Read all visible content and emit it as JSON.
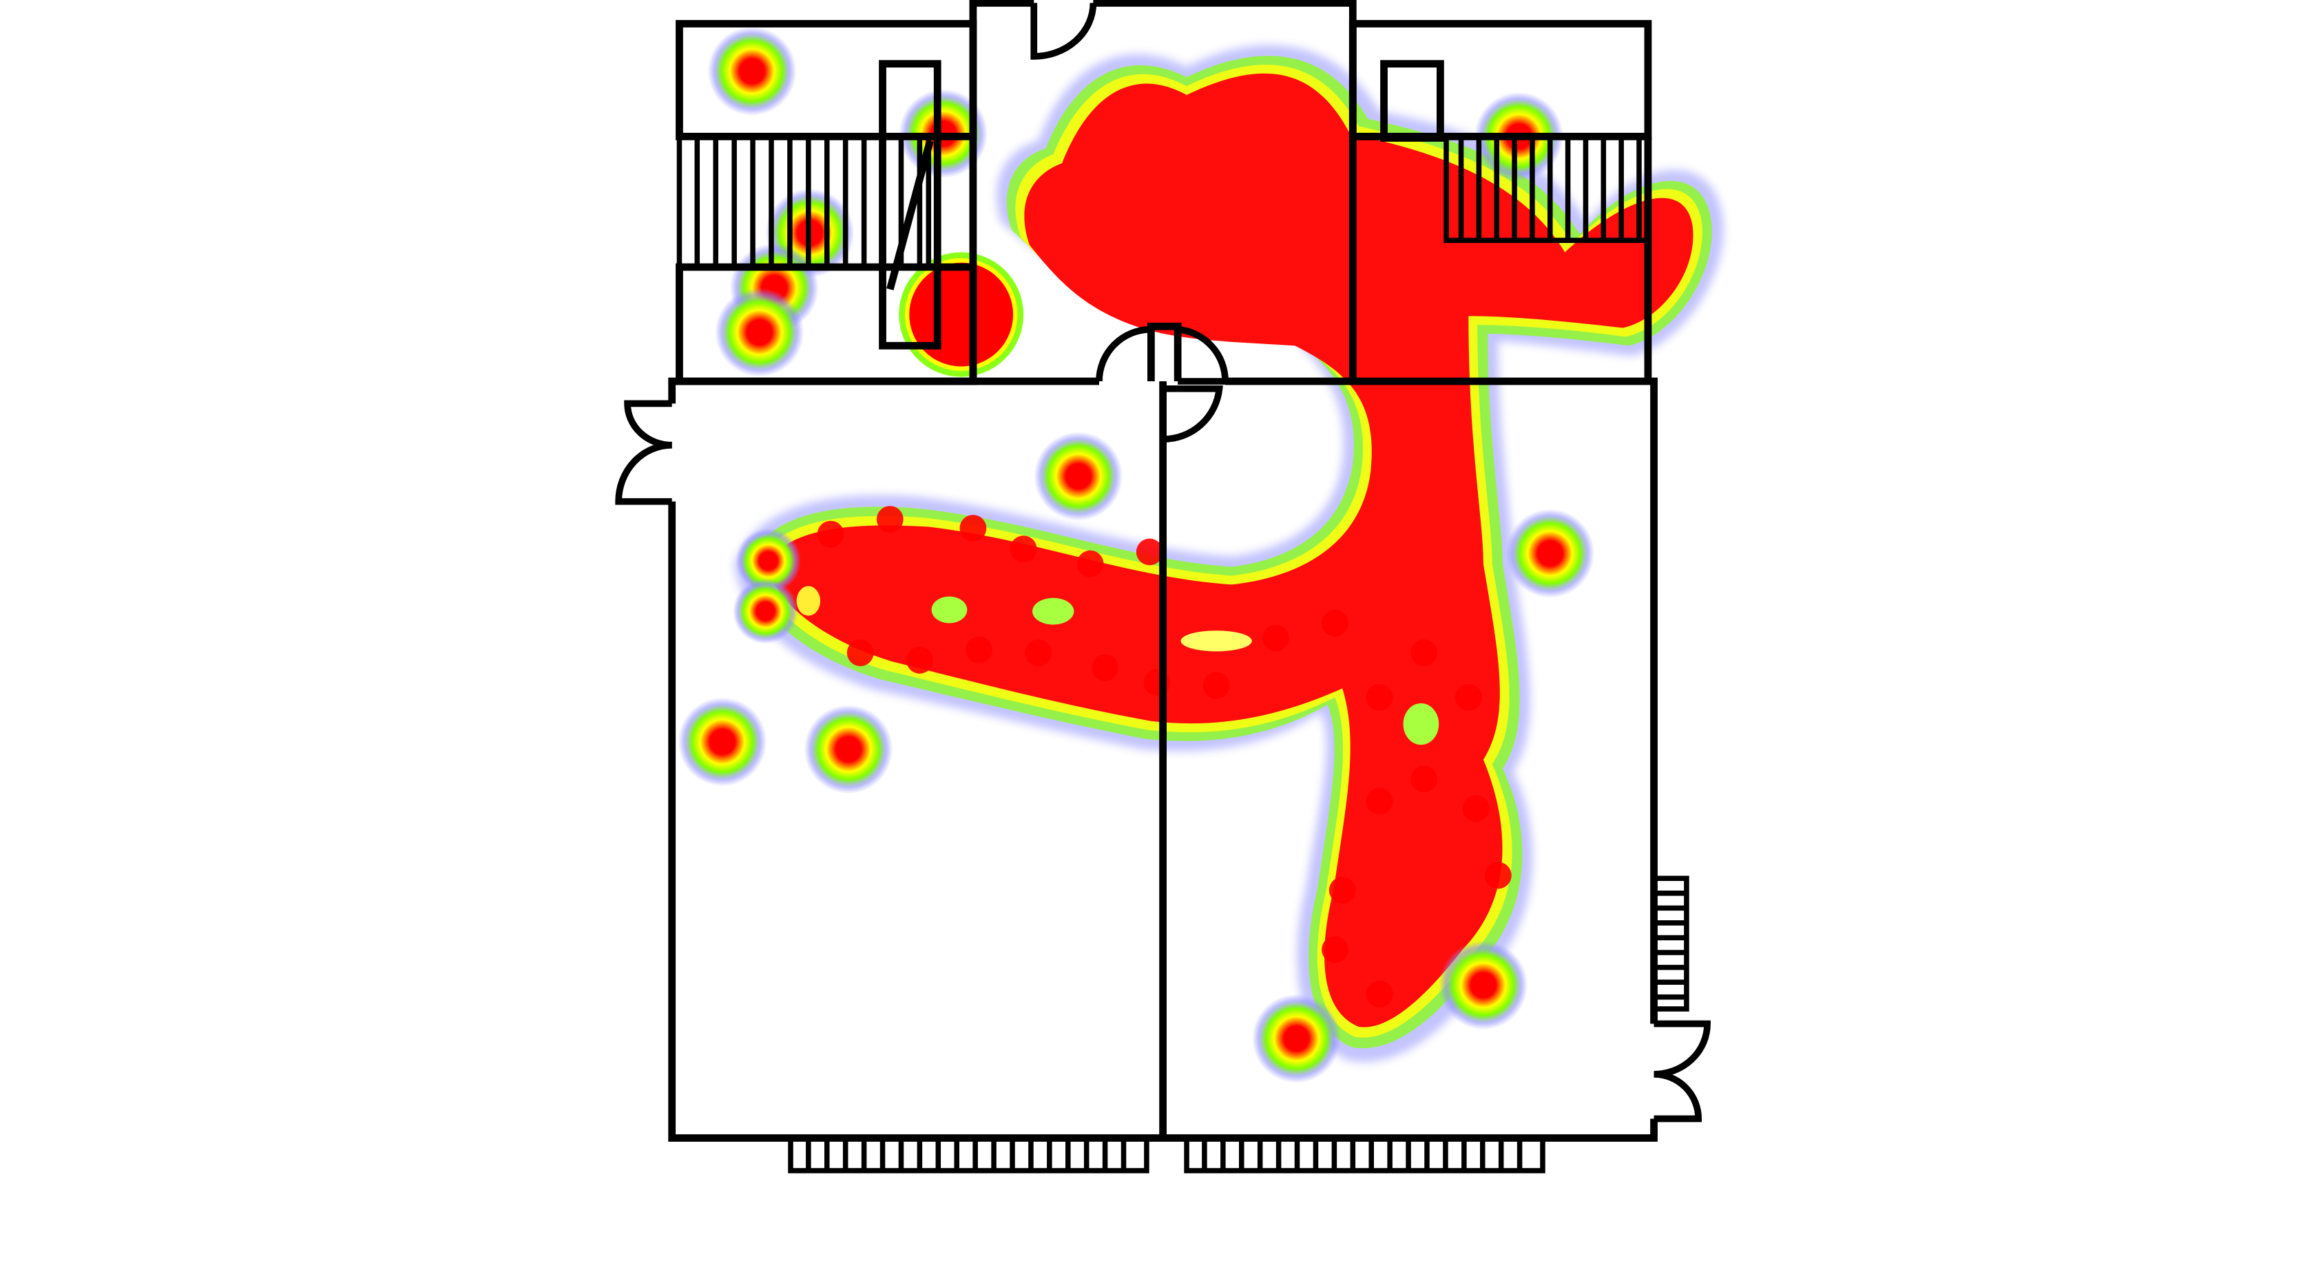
{
  "diagram": {
    "type": "floor-plan-heatmap",
    "heatmap_colors": {
      "hot": "#ff0000",
      "warm": "#ffff00",
      "mid": "#7fff00",
      "cool": "#8c8cff"
    },
    "labels": []
  }
}
